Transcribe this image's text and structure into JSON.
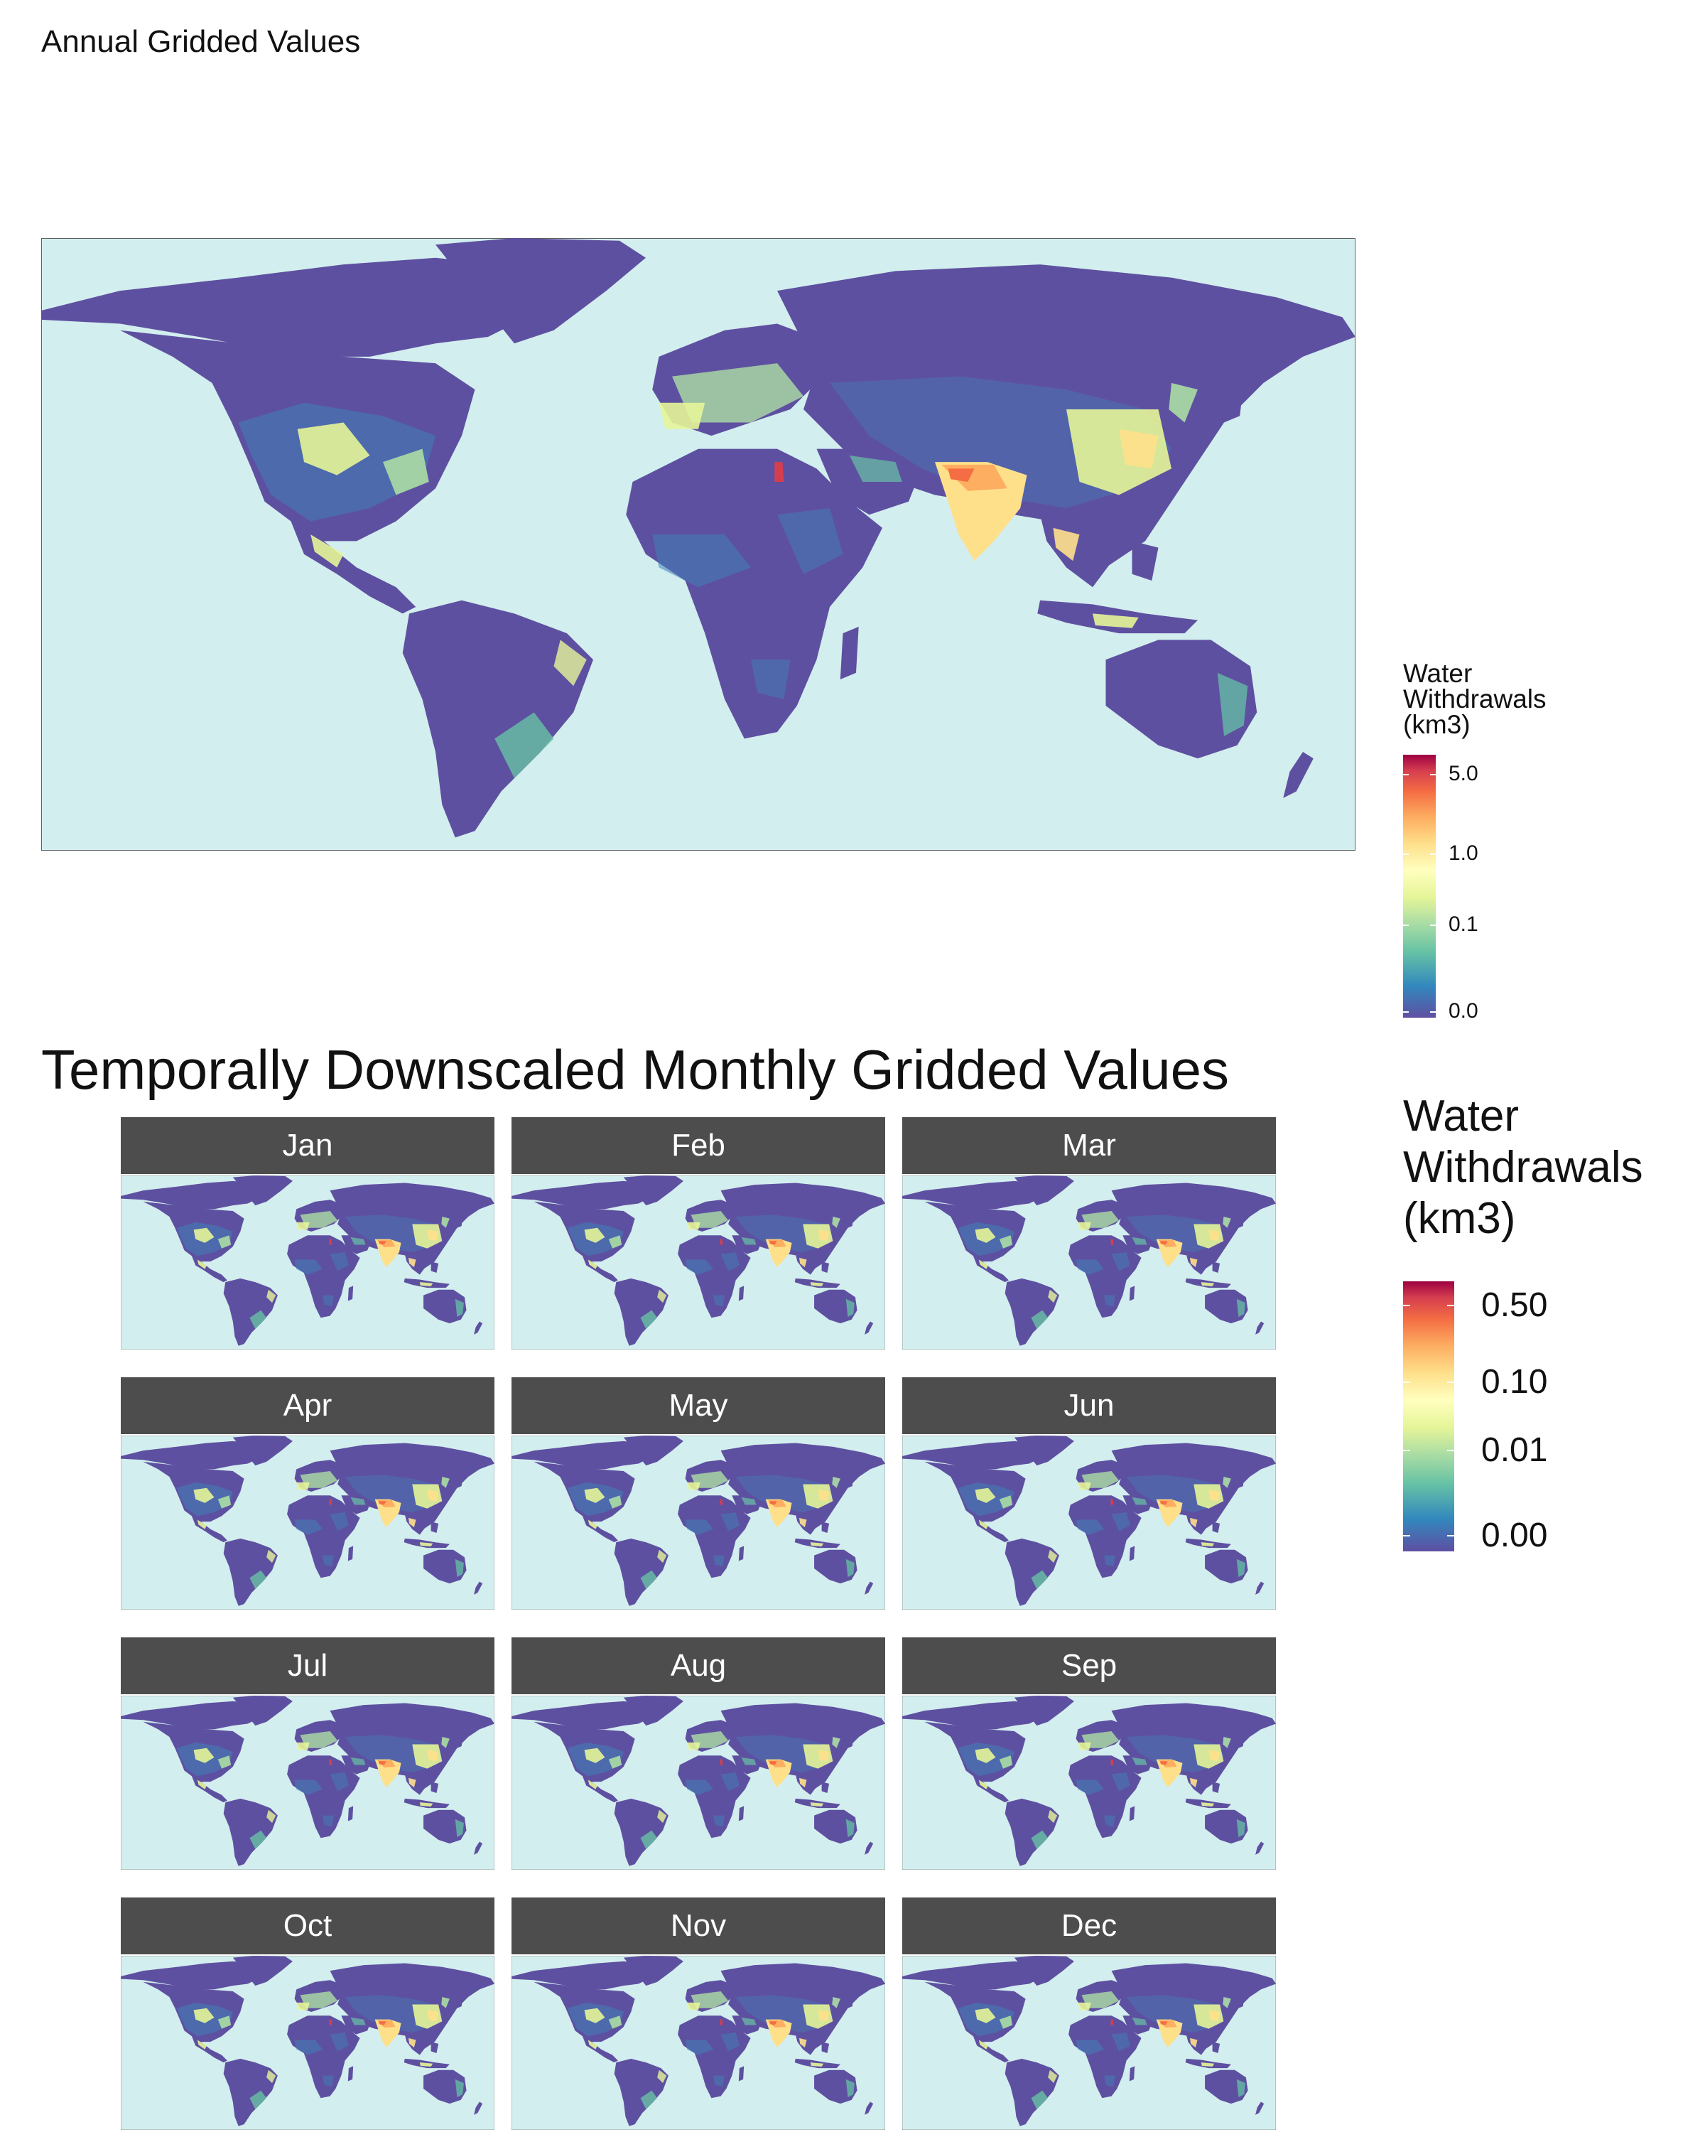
{
  "annual": {
    "title": "Annual Gridded Values",
    "legend": {
      "title_lines": [
        "Water",
        "Withdrawals",
        "(km3)"
      ],
      "ticks": [
        "5.0",
        "1.0",
        "0.1",
        "0.0"
      ]
    }
  },
  "monthly": {
    "title": "Temporally Downscaled Monthly Gridded Values",
    "months": [
      "Jan",
      "Feb",
      "Mar",
      "Apr",
      "May",
      "Jun",
      "Jul",
      "Aug",
      "Sep",
      "Oct",
      "Nov",
      "Dec"
    ],
    "legend": {
      "title_lines": [
        "Water",
        "Withdrawals",
        "(km3)"
      ],
      "ticks": [
        "0.50",
        "0.10",
        "0.01",
        "0.00"
      ]
    }
  },
  "colors": {
    "ocean": "#d3eeee",
    "land_low": "#5e50a1",
    "scale": [
      "#5e4fa2",
      "#3288bd",
      "#66c2a5",
      "#abdda4",
      "#e6f598",
      "#ffffbf",
      "#fee08b",
      "#fdae61",
      "#f46d43",
      "#d53e4f",
      "#9e0142"
    ]
  }
}
